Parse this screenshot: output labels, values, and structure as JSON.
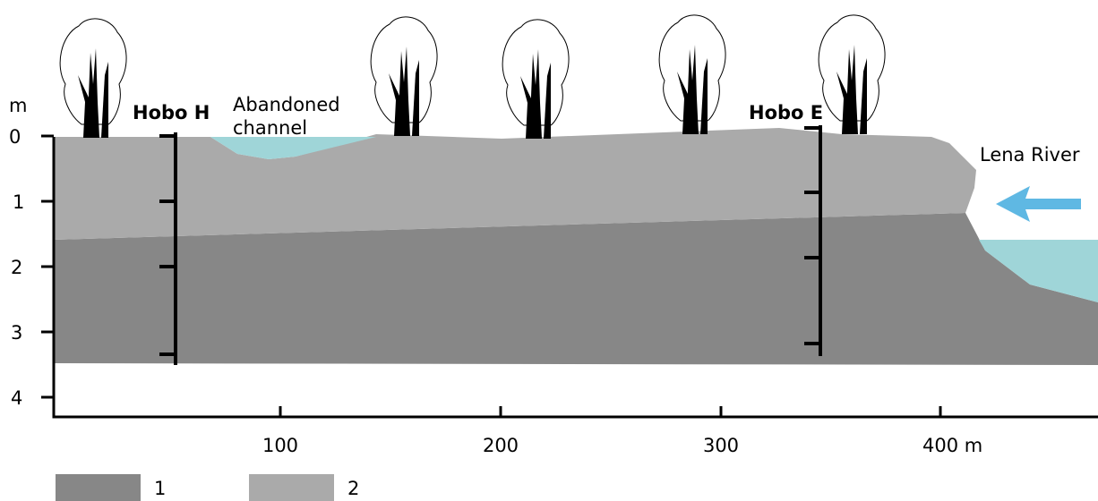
{
  "axes": {
    "y_unit": "m",
    "y_ticks": [
      "0",
      "1",
      "2",
      "3",
      "4"
    ],
    "x_ticks": [
      "100",
      "200",
      "300",
      "400 m"
    ]
  },
  "labels": {
    "hobo_h": "Hobo H",
    "abandoned_channel": [
      "Abandoned",
      "channel"
    ],
    "hobo_e": "Hobo E",
    "lena_river": "Lena River"
  },
  "legend": [
    {
      "label": "1",
      "color": "#878787"
    },
    {
      "label": "2",
      "color": "#aaaaaa"
    }
  ]
}
